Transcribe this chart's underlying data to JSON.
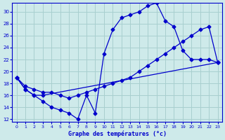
{
  "title": "Graphe des températures (°c)",
  "background_color": "#ceeaea",
  "grid_color": "#a8cfcf",
  "line_color": "#0000cc",
  "xlim": [
    -0.5,
    23.5
  ],
  "ylim": [
    11.5,
    31.5
  ],
  "xticks": [
    0,
    1,
    2,
    3,
    4,
    5,
    6,
    7,
    8,
    9,
    10,
    11,
    12,
    13,
    14,
    15,
    16,
    17,
    18,
    19,
    20,
    21,
    22,
    23
  ],
  "yticks": [
    12,
    14,
    16,
    18,
    20,
    22,
    24,
    26,
    28,
    30
  ],
  "series1_x": [
    0,
    1,
    2,
    3,
    4,
    5,
    6,
    7,
    8,
    9,
    10,
    11,
    12,
    13,
    14,
    15,
    16,
    17,
    18,
    19,
    20,
    21,
    22,
    23
  ],
  "series1_y": [
    19,
    17,
    16,
    15,
    14,
    13.5,
    13,
    12,
    16,
    13,
    23,
    27,
    29,
    29.5,
    30,
    31,
    31.5,
    28.5,
    27.5,
    23.5,
    22,
    22,
    22,
    21.5
  ],
  "series2_x": [
    0,
    1,
    2,
    3,
    23
  ],
  "series2_y": [
    19,
    17,
    16,
    16,
    21.5
  ],
  "series3_x": [
    0,
    1,
    2,
    3,
    4,
    5,
    6,
    7,
    8,
    9,
    10,
    11,
    12,
    13,
    14,
    15,
    16,
    17,
    18,
    19,
    20,
    21,
    22,
    23
  ],
  "series3_y": [
    19,
    17.5,
    17,
    16.5,
    16.5,
    16,
    15.5,
    16,
    16.5,
    17,
    17.5,
    18,
    18.5,
    19,
    20,
    21,
    22,
    23,
    24,
    25,
    26,
    27,
    27.5,
    21.5
  ]
}
